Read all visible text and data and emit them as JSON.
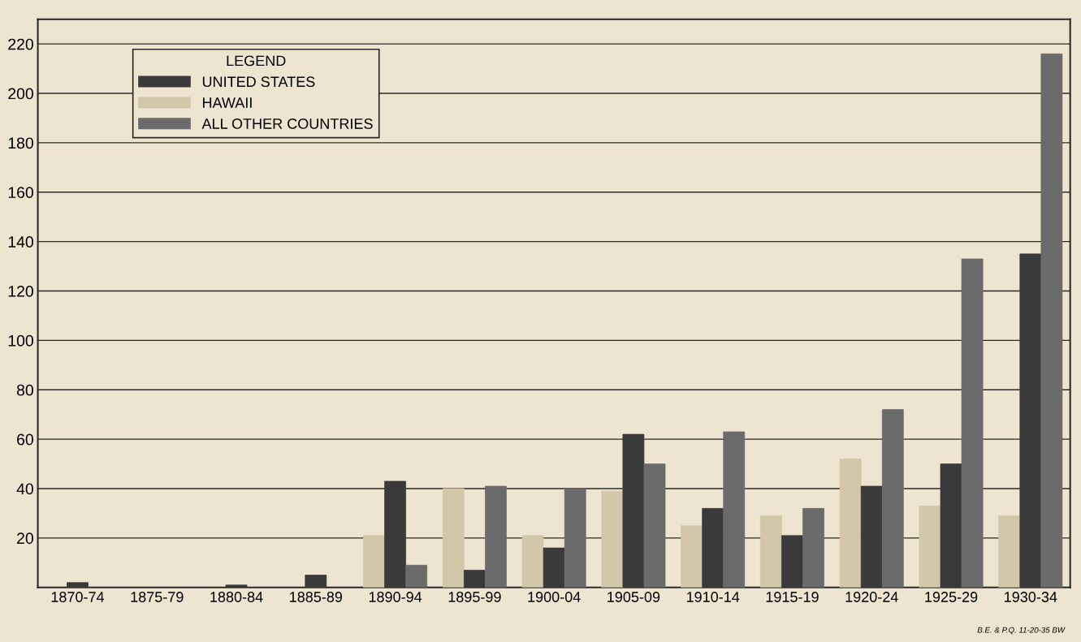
{
  "chart_data": {
    "type": "bar",
    "categories": [
      "1870-74",
      "1875-79",
      "1880-84",
      "1885-89",
      "1890-94",
      "1895-99",
      "1900-04",
      "1905-09",
      "1910-14",
      "1915-19",
      "1920-24",
      "1925-29",
      "1930-34"
    ],
    "series": [
      {
        "name": "HAWAII",
        "color": "#d2c7a8",
        "values": [
          null,
          null,
          null,
          null,
          21,
          40,
          21,
          39,
          25,
          29,
          52,
          33,
          29
        ]
      },
      {
        "name": "UNITED STATES",
        "color": "#3a3a3a",
        "values": [
          2,
          null,
          1,
          5,
          43,
          7,
          16,
          62,
          32,
          21,
          41,
          50,
          135
        ]
      },
      {
        "name": "ALL OTHER COUNTRIES",
        "color": "#6b6b6b",
        "values": [
          null,
          null,
          null,
          null,
          9,
          41,
          40,
          50,
          63,
          32,
          72,
          133,
          216
        ]
      }
    ],
    "legend_title": "LEGEND",
    "legend": "top left",
    "grid": "y",
    "ylim": [
      0,
      230
    ],
    "yticks": [
      20,
      40,
      60,
      80,
      100,
      120,
      140,
      160,
      180,
      200,
      220
    ],
    "annotations": [
      "B.E. & P.Q. 11-20-35 BW"
    ]
  }
}
